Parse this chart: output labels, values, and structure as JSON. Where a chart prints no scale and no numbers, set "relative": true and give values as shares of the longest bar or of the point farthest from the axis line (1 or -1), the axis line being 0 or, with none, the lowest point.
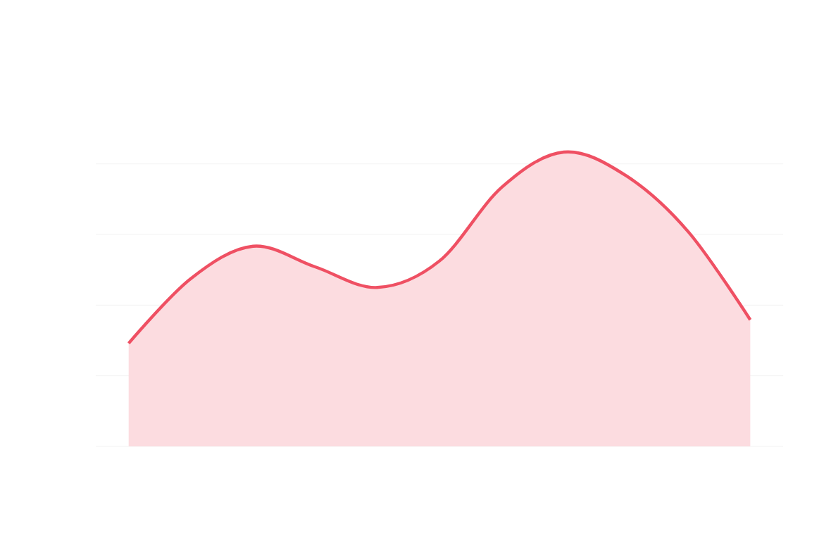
{
  "chart_data": {
    "type": "area",
    "relative": true,
    "grid": "y",
    "categories": [
      null,
      null,
      null,
      null,
      null,
      null,
      null,
      null,
      null,
      null,
      null
    ],
    "series": [
      {
        "color": "#ef5063",
        "values": [
          0.35,
          0.57,
          0.68,
          0.61,
          0.54,
          0.63,
          0.88,
          1,
          0.92,
          0.73,
          0.43
        ]
      }
    ]
  }
}
